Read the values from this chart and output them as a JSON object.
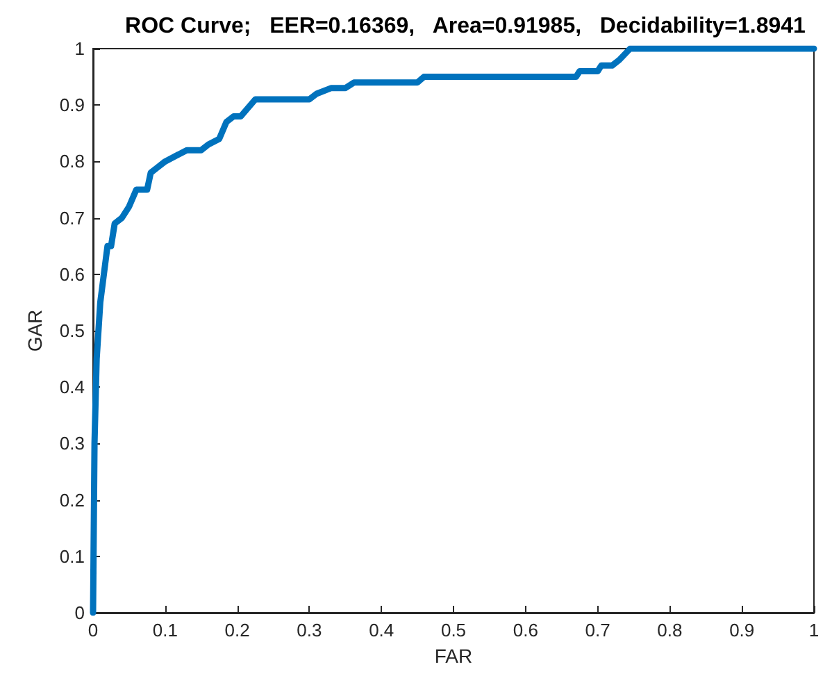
{
  "chart_data": {
    "type": "line",
    "title": "ROC Curve;   EER=0.16369,   Area=0.91985,   Decidability=1.8941",
    "xlabel": "FAR",
    "ylabel": "GAR",
    "xlim": [
      0,
      1
    ],
    "xticks": [
      0,
      0.1,
      0.2,
      0.3,
      0.4,
      0.5,
      0.6,
      0.7,
      0.8,
      0.9,
      1
    ],
    "ylim": [
      0,
      1
    ],
    "yticks": [
      0,
      0.1,
      0.2,
      0.3,
      0.4,
      0.5,
      0.6,
      0.7,
      0.8,
      0.9,
      1
    ],
    "grid": false,
    "marker": "none",
    "line_style": "solid",
    "series": [
      {
        "color": "#0072bd",
        "x": [
          0,
          0.002,
          0.005,
          0.01,
          0.015,
          0.02,
          0.025,
          0.03,
          0.04,
          0.05,
          0.06,
          0.075,
          0.08,
          0.09,
          0.1,
          0.115,
          0.13,
          0.15,
          0.16,
          0.175,
          0.185,
          0.195,
          0.205,
          0.225,
          0.3,
          0.31,
          0.33,
          0.35,
          0.362,
          0.45,
          0.459,
          0.67,
          0.675,
          0.7,
          0.705,
          0.72,
          0.73,
          0.745,
          1
        ],
        "values": [
          0,
          0.3,
          0.45,
          0.55,
          0.6,
          0.65,
          0.65,
          0.69,
          0.7,
          0.72,
          0.75,
          0.75,
          0.78,
          0.79,
          0.8,
          0.81,
          0.82,
          0.82,
          0.83,
          0.84,
          0.87,
          0.88,
          0.88,
          0.91,
          0.91,
          0.92,
          0.93,
          0.93,
          0.94,
          0.94,
          0.95,
          0.95,
          0.96,
          0.96,
          0.97,
          0.97,
          0.98,
          1,
          1
        ]
      }
    ]
  }
}
